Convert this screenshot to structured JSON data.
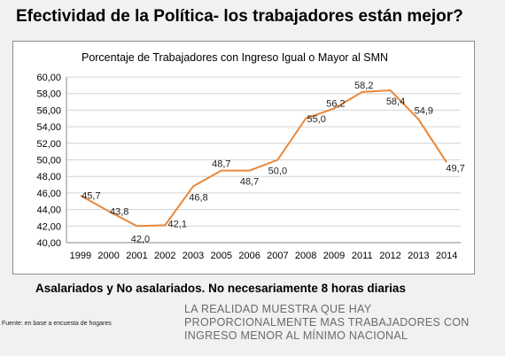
{
  "slide": {
    "title": "Efectividad de la Política- los trabajadores están mejor?",
    "subtitle": "Asalariados y No asalariados. No necesariamente 8 horas diarias",
    "source": "Fuente: en base a encuesta de hogares",
    "note_lines": [
      "LA REALIDAD MUESTRA QUE HAY",
      "PROPORCIONALMENTE MAS TRABAJADORES CON",
      "INGRESO MENOR AL MÍNIMO NACIONAL"
    ]
  },
  "chart_data": {
    "type": "line",
    "title": "Porcentaje de Trabajadores con Ingreso Igual o Mayor al SMN",
    "categories": [
      "1999",
      "2000",
      "2001",
      "2002",
      "2003",
      "2005",
      "2006",
      "2007",
      "2008",
      "2009",
      "2011",
      "2012",
      "2013",
      "2014"
    ],
    "values": [
      45.7,
      43.8,
      42.0,
      42.1,
      46.8,
      48.7,
      48.7,
      50.0,
      55.0,
      56.2,
      58.2,
      58.4,
      54.9,
      49.7
    ],
    "data_labels": [
      "45,7",
      "43,8",
      "42,0",
      "42,1",
      "46,8",
      "48,7",
      "48,7",
      "50,0",
      "55,0",
      "56,2",
      "58,2",
      "58,4",
      "54,9",
      "49,7"
    ],
    "y_ticks": [
      "40,00",
      "42,00",
      "44,00",
      "46,00",
      "48,00",
      "50,00",
      "52,00",
      "54,00",
      "56,00",
      "58,00",
      "60,00"
    ],
    "ylim": [
      40,
      60
    ],
    "line_color": "#e8873a",
    "grid": true,
    "xlabel": "",
    "ylabel": ""
  }
}
